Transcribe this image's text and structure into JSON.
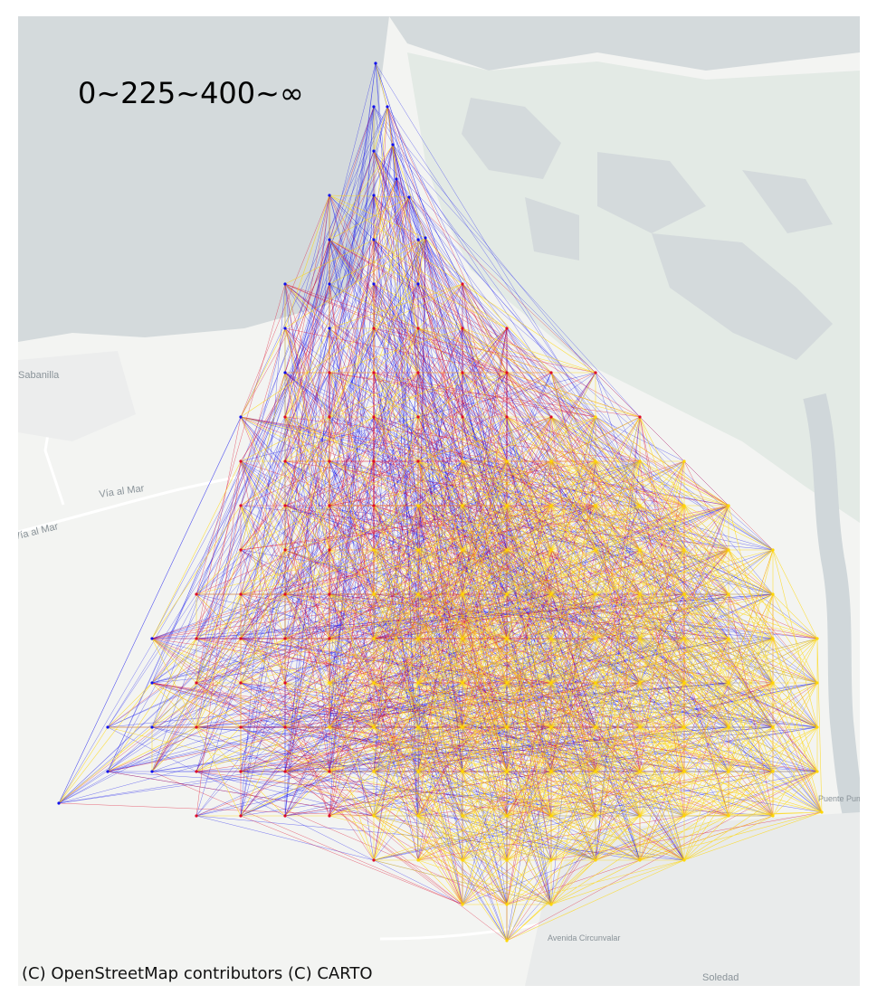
{
  "map": {
    "legend_title": "0~225~400~∞",
    "attribution": "(C) OpenStreetMap contributors (C) CARTO",
    "place_labels": [
      "Sabanilla",
      "Vía al Mar",
      "Vía al Mar",
      "Soledad",
      "Avenida Circunvalar",
      "Puente Pumarejo"
    ],
    "basemap_colors": {
      "water": "#d4dadc",
      "land": "#f2f3f1",
      "wetland": "#e4ebe6",
      "road": "#ffffff",
      "urban": "#e8eaea"
    },
    "distance_class_colors": {
      "short": "#ffd700",
      "medium": "#dd0a2a",
      "long": "#1010ee"
    },
    "legend_thresholds": [
      0,
      225,
      400,
      "∞"
    ]
  }
}
